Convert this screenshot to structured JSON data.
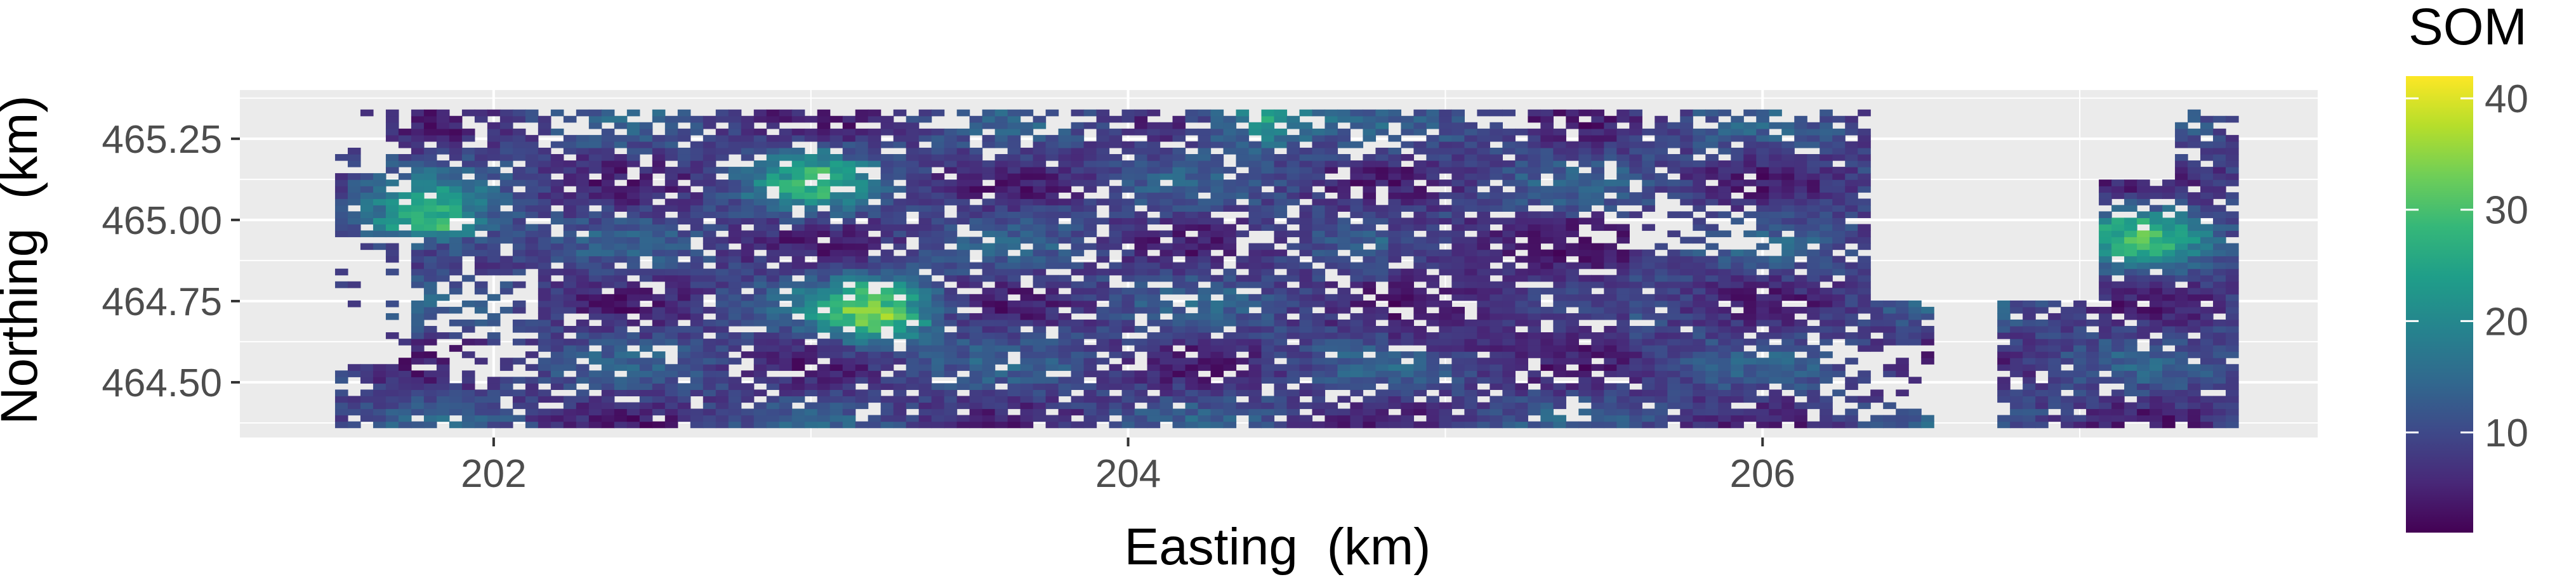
{
  "chart_data": {
    "type": "heatmap",
    "title": "",
    "xlabel": "Easting  (km)",
    "ylabel": "Northing  (km)",
    "x_ticks": [
      202,
      204,
      206
    ],
    "x_tick_labels": [
      "202",
      "204",
      "206"
    ],
    "y_ticks": [
      464.5,
      464.75,
      465.0,
      465.25
    ],
    "y_tick_labels": [
      "464.50",
      "464.75",
      "465.00",
      "465.25"
    ],
    "xlim": [
      201.2,
      207.75
    ],
    "ylim": [
      464.33,
      465.4
    ],
    "data_extent": {
      "x": [
        201.5,
        207.5
      ],
      "y": [
        464.36,
        465.34
      ]
    },
    "grid": true,
    "legend": {
      "title": "SOM",
      "position": "right",
      "ticks": [
        10,
        20,
        30,
        40
      ],
      "tick_labels": [
        "10",
        "20",
        "30",
        "40"
      ],
      "range": [
        1,
        42
      ],
      "colormap": "viridis"
    },
    "colors": {
      "panel_background": "#ebebeb",
      "grid": "#ffffff",
      "viridis": [
        "#440154",
        "#482878",
        "#3e4989",
        "#31688e",
        "#26828e",
        "#1f9e89",
        "#35b779",
        "#6ece58",
        "#b5de2b",
        "#fde725"
      ]
    },
    "data_description": "Gridded soil organic matter (SOM) map with ~0.04 km cells; values mostly 5-15 with hotspots up to ~42 near (203.2, 464.72), (201.8, 465.0) and (203.0, 465.1); white gaps mark missing cells including a diagonal road from (203.7, 464.36) to (204.9, 465.34) and large voids in the east around 206.5-207.0 km.",
    "hotspots": [
      {
        "x": 203.2,
        "y": 464.72,
        "value": 40
      },
      {
        "x": 201.8,
        "y": 465.0,
        "value": 36
      },
      {
        "x": 203.0,
        "y": 465.12,
        "value": 30
      },
      {
        "x": 207.2,
        "y": 464.95,
        "value": 32
      },
      {
        "x": 204.4,
        "y": 465.32,
        "value": 30
      }
    ]
  }
}
